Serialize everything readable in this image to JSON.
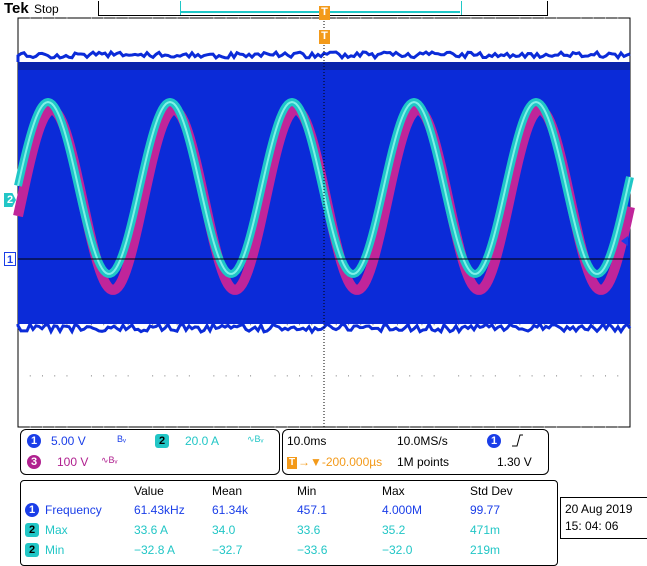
{
  "header": {
    "brand": "Tek",
    "status": "Stop",
    "trigger_marker": "T"
  },
  "markers": {
    "ch2": "2",
    "ch1": "1"
  },
  "colors": {
    "background": "#ffffff",
    "ch1_fill": "#0b2bd8",
    "ch1_dark": "#08208f",
    "ch2_cyan": "#1fc7c7",
    "ch3_magenta": "#c0259a",
    "trigger_orange": "#f39a1a",
    "grid": "#000000"
  },
  "channels": [
    {
      "id": "1",
      "scale": "5.00 V",
      "bw": "Bᵥ",
      "color": "#1a3ee8"
    },
    {
      "id": "2",
      "scale": "20.0 A",
      "bw": "∿Bᵥ",
      "color": "#22c6c6"
    },
    {
      "id": "3",
      "scale": "100 V",
      "bw": "∿Bᵥ",
      "color": "#b0208f"
    }
  ],
  "timebase": {
    "time_div": "10.0ms",
    "sample_rate": "10.0MS/s",
    "trigger_channel": "1",
    "trigger_slope_icon": "rising-edge-icon",
    "trigger_level": "1.30 V",
    "offset": "→▼-200.000µs",
    "record_length": "1M points"
  },
  "measurements": {
    "headers": [
      "Value",
      "Mean",
      "Min",
      "Max",
      "Std Dev"
    ],
    "rows": [
      {
        "channel": "1",
        "name": "Frequency",
        "value": "61.43kHz",
        "mean": "61.34k",
        "min": "457.1",
        "max": "4.000M",
        "std": "99.77"
      },
      {
        "channel": "2",
        "name": "Max",
        "value": "33.6 A",
        "mean": "34.0",
        "min": "33.6",
        "max": "35.2",
        "std": "471m"
      },
      {
        "channel": "2",
        "name": "Min",
        "value": "−32.8 A",
        "mean": "−32.7",
        "min": "−33.6",
        "max": "−32.0",
        "std": "219m"
      }
    ]
  },
  "datetime": {
    "date": "20 Aug   2019",
    "time": "15: 04: 06"
  }
}
